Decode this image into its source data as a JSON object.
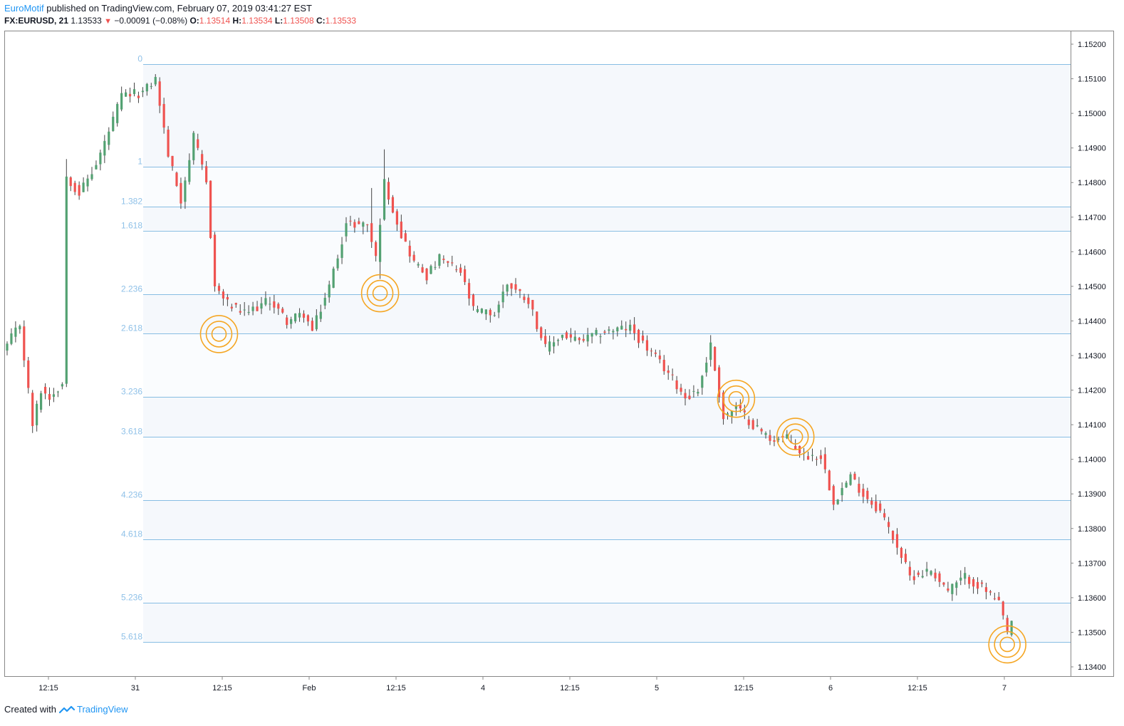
{
  "header": {
    "author": "EuroMotif",
    "published_text": "published on TradingView.com, February 07, 2019 03:41:27 EST",
    "symbol": "FX:EURUSD, 21",
    "last": "1.13533",
    "change": "−0.00091 (−0.08%)",
    "o_label": "O:",
    "o": "1.13514",
    "h_label": "H:",
    "h": "1.13534",
    "l_label": "L:",
    "l": "1.13508",
    "c_label": "C:",
    "c": "1.13533"
  },
  "footer": {
    "created_with": "Created with",
    "brand": "TradingView"
  },
  "colors": {
    "up": "#53a172",
    "down": "#ef5350",
    "fib_line": "#87bde3",
    "fib_label": "#8fc1e8",
    "fib_fill": "#f5f8fc",
    "circle": "#f5a623",
    "axis_text": "#131722",
    "border": "#888888"
  },
  "chart_data": {
    "type": "candlestick",
    "symbol": "FX:EURUSD",
    "interval": "21",
    "ylim": [
      1.1336,
      1.1524
    ],
    "y_ticks": [
      "1.15200",
      "1.15100",
      "1.15000",
      "1.14900",
      "1.14800",
      "1.14700",
      "1.14600",
      "1.14500",
      "1.14400",
      "1.14300",
      "1.14200",
      "1.14100",
      "1.14000",
      "1.13900",
      "1.13800",
      "1.13700",
      "1.13600",
      "1.13500",
      "1.13400"
    ],
    "x_ticks": [
      "12:15",
      "31",
      "12:15",
      "Feb",
      "12:15",
      "4",
      "12:15",
      "5",
      "12:15",
      "6",
      "12:15",
      "7"
    ],
    "fib_extension": [
      {
        "level": "0",
        "price": 1.15142
      },
      {
        "level": "1",
        "price": 1.14845
      },
      {
        "level": "1.382",
        "price": 1.14731
      },
      {
        "level": "1.618",
        "price": 1.14661
      },
      {
        "level": "2.236",
        "price": 1.14477
      },
      {
        "level": "2.618",
        "price": 1.14363
      },
      {
        "level": "3.236",
        "price": 1.1418
      },
      {
        "level": "3.618",
        "price": 1.14066
      },
      {
        "level": "4.236",
        "price": 1.13882
      },
      {
        "level": "4.618",
        "price": 1.13769
      },
      {
        "level": "5.236",
        "price": 1.13585
      },
      {
        "level": "5.618",
        "price": 1.13472
      }
    ],
    "target_circles": [
      {
        "x_index": 50,
        "price": 1.14362
      },
      {
        "x_index": 88,
        "price": 1.1448
      },
      {
        "x_index": 172,
        "price": 1.14175
      },
      {
        "x_index": 186,
        "price": 1.14065
      },
      {
        "x_index": 236,
        "price": 1.13465
      }
    ],
    "waypoints": [
      [
        0,
        1.1433
      ],
      [
        3,
        1.1439
      ],
      [
        6,
        1.141
      ],
      [
        8,
        1.142
      ],
      [
        10,
        1.1418
      ],
      [
        13,
        1.1422
      ],
      [
        14,
        1.1482
      ],
      [
        17,
        1.1477
      ],
      [
        21,
        1.1485
      ],
      [
        25,
        1.1498
      ],
      [
        27,
        1.1505
      ],
      [
        32,
        1.1506
      ],
      [
        35,
        1.151
      ],
      [
        38,
        1.1488
      ],
      [
        41,
        1.1475
      ],
      [
        44,
        1.1493
      ],
      [
        47,
        1.148
      ],
      [
        49,
        1.145
      ],
      [
        52,
        1.1445
      ],
      [
        56,
        1.1442
      ],
      [
        62,
        1.1446
      ],
      [
        66,
        1.144
      ],
      [
        70,
        1.1442
      ],
      [
        72,
        1.1437
      ],
      [
        76,
        1.145
      ],
      [
        80,
        1.1468
      ],
      [
        85,
        1.1468
      ],
      [
        87,
        1.1458
      ],
      [
        89,
        1.148
      ],
      [
        93,
        1.1465
      ],
      [
        96,
        1.1457
      ],
      [
        99,
        1.1453
      ],
      [
        102,
        1.1458
      ],
      [
        107,
        1.1454
      ],
      [
        110,
        1.1443
      ],
      [
        115,
        1.1442
      ],
      [
        118,
        1.1451
      ],
      [
        123,
        1.1446
      ],
      [
        127,
        1.1432
      ],
      [
        131,
        1.1436
      ],
      [
        135,
        1.1434
      ],
      [
        141,
        1.1437
      ],
      [
        147,
        1.1438
      ],
      [
        151,
        1.1432
      ],
      [
        156,
        1.1425
      ],
      [
        160,
        1.1418
      ],
      [
        163,
        1.142
      ],
      [
        166,
        1.1433
      ],
      [
        169,
        1.1412
      ],
      [
        172,
        1.1415
      ],
      [
        176,
        1.141
      ],
      [
        180,
        1.1406
      ],
      [
        184,
        1.1406
      ],
      [
        188,
        1.1401
      ],
      [
        192,
        1.1401
      ],
      [
        195,
        1.1388
      ],
      [
        199,
        1.1395
      ],
      [
        202,
        1.139
      ],
      [
        206,
        1.1385
      ],
      [
        210,
        1.1375
      ],
      [
        213,
        1.1366
      ],
      [
        218,
        1.1368
      ],
      [
        222,
        1.1362
      ],
      [
        226,
        1.1366
      ],
      [
        231,
        1.1362
      ],
      [
        234,
        1.1358
      ],
      [
        236,
        1.135
      ],
      [
        237,
        1.13533
      ]
    ]
  }
}
